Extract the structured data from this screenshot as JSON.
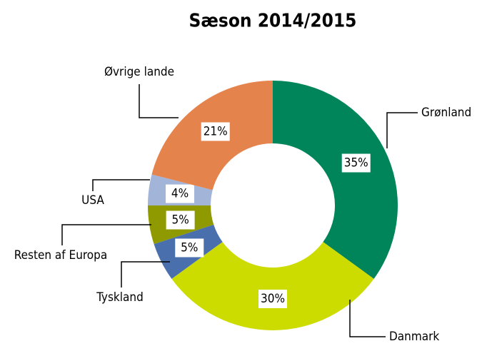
{
  "chart_data": {
    "type": "pie",
    "title": "Sæson 2014/2015",
    "categories": [
      "Grønland",
      "Danmark",
      "Tyskland",
      "Resten af Europa",
      "USA",
      "Øvrige lande"
    ],
    "values": [
      35,
      30,
      5,
      5,
      4,
      21
    ],
    "value_labels": [
      "35%",
      "30%",
      "5%",
      "5%",
      "4%",
      "21%"
    ],
    "colors": [
      "#00845a",
      "#cddc00",
      "#4a6fad",
      "#8f9900",
      "#a3b4d9",
      "#e5834d"
    ]
  }
}
